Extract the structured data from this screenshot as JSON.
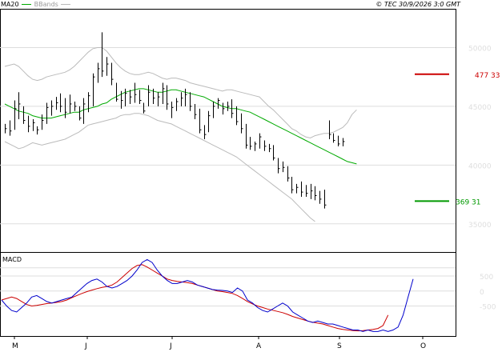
{
  "header": {
    "legend_ma": "MA20",
    "legend_bb": "BBands",
    "copyright": "© TEC 30/9/2026 3:0 GMT"
  },
  "colors": {
    "ma": "#00aa00",
    "bands": "#bbbbbb",
    "bars": "#000000",
    "macd": "#0000cc",
    "signal": "#cc0000",
    "resistance": "#cc0000",
    "support": "#009900",
    "grid": "#dddddd"
  },
  "chart_data": [
    {
      "type": "ohlc",
      "panel": "price",
      "ylim": [
        32600,
        53300
      ],
      "yticks": [
        35000,
        40000,
        45000,
        50000
      ],
      "x_labels": [
        "M",
        "J",
        "J",
        "A",
        "S",
        "O"
      ],
      "series": [
        {
          "name": "MA20",
          "values": [
            45200,
            45000,
            44800,
            44600,
            44500,
            44400,
            44200,
            44100,
            44000,
            44000,
            44000,
            44100,
            44200,
            44300,
            44400,
            44500,
            44500,
            44700,
            44800,
            44900,
            45000,
            45200,
            45300,
            45600,
            45800,
            46000,
            46200,
            46300,
            46400,
            46500,
            46500,
            46400,
            46300,
            46200,
            46200,
            46300,
            46400,
            46400,
            46300,
            46200,
            46100,
            46000,
            45900,
            45800,
            45600,
            45400,
            45200,
            45000,
            44900,
            44800,
            44800,
            44700,
            44600,
            44500,
            44300,
            44100,
            43900,
            43700,
            43500,
            43300,
            43100,
            42900,
            42700,
            42500,
            42300,
            42100,
            41900,
            41700,
            41500,
            41300,
            41100,
            40900,
            40700,
            40500,
            40300,
            40200,
            40100
          ]
        },
        {
          "name": "Upper band",
          "values": [
            48400,
            48500,
            48600,
            48400,
            48000,
            47600,
            47300,
            47200,
            47300,
            47500,
            47600,
            47700,
            47800,
            47900,
            48100,
            48400,
            48800,
            49200,
            49600,
            49900,
            50000,
            50000,
            49700,
            49200,
            48700,
            48300,
            48000,
            47800,
            47700,
            47700,
            47800,
            47900,
            47800,
            47600,
            47400,
            47300,
            47400,
            47400,
            47300,
            47200,
            47000,
            46900,
            46800,
            46700,
            46600,
            46500,
            46400,
            46300,
            46400,
            46400,
            46300,
            46200,
            46100,
            46000,
            45900,
            45800,
            45400,
            45000,
            44700,
            44300,
            43900,
            43500,
            43100,
            42900,
            42600,
            42400,
            42300,
            42500,
            42600,
            42700,
            42700,
            42800,
            43000,
            43200,
            43600,
            44300,
            44700
          ]
        },
        {
          "name": "Lower band",
          "values": [
            42000,
            41800,
            41600,
            41400,
            41500,
            41700,
            41900,
            41800,
            41700,
            41800,
            41900,
            42000,
            42100,
            42200,
            42400,
            42600,
            42800,
            43100,
            43400,
            43500,
            43600,
            43700,
            43800,
            43900,
            44000,
            44200,
            44300,
            44300,
            44400,
            44400,
            44300,
            44200,
            44000,
            43800,
            43700,
            43600,
            43500,
            43300,
            43100,
            42900,
            42700,
            42500,
            42300,
            42100,
            41900,
            41700,
            41500,
            41300,
            41100,
            40900,
            40700,
            40400,
            40100,
            39800,
            39500,
            39200,
            38900,
            38600,
            38300,
            38000,
            37700,
            37400,
            37100,
            36700,
            36300,
            35900,
            35500,
            35200
          ]
        },
        {
          "name": "Price",
          "values": [
            [
              43500,
              42700,
              43100
            ],
            [
              43800,
              42500,
              42900
            ],
            [
              45500,
              43000,
              44800
            ],
            [
              46200,
              43900,
              45200
            ],
            [
              45000,
              43500,
              43800
            ],
            [
              44200,
              42800,
              43300
            ],
            [
              43900,
              42900,
              43600
            ],
            [
              43300,
              42600,
              43000
            ],
            [
              44300,
              43000,
              43800
            ],
            [
              45300,
              43500,
              44900
            ],
            [
              45500,
              44200,
              45000
            ],
            [
              45800,
              44700,
              45300
            ],
            [
              46100,
              44500,
              45000
            ],
            [
              45700,
              44000,
              44500
            ],
            [
              46000,
              44400,
              45200
            ],
            [
              45400,
              44600,
              45000
            ],
            [
              45000,
              43800,
              44000
            ],
            [
              45700,
              43500,
              45200
            ],
            [
              46200,
              44500,
              45900
            ],
            [
              47800,
              45000,
              47500
            ],
            [
              48700,
              47000,
              48200
            ],
            [
              51300,
              47500,
              48000
            ],
            [
              49200,
              47600,
              48600
            ],
            [
              48700,
              46800,
              47300
            ],
            [
              47000,
              45400,
              45600
            ],
            [
              46300,
              44800,
              45500
            ],
            [
              46500,
              45000,
              46100
            ],
            [
              46400,
              45200,
              45800
            ],
            [
              47000,
              45300,
              46000
            ],
            [
              46400,
              45200,
              45500
            ],
            [
              45300,
              44400,
              44600
            ],
            [
              46800,
              45000,
              46200
            ],
            [
              46500,
              45200,
              45700
            ],
            [
              46200,
              45000,
              45800
            ],
            [
              47000,
              45200,
              46500
            ],
            [
              46800,
              44700,
              45200
            ],
            [
              45400,
              44000,
              44900
            ],
            [
              45700,
              44600,
              45400
            ],
            [
              46200,
              45000,
              45700
            ],
            [
              46500,
              45000,
              46000
            ],
            [
              46200,
              44600,
              45000
            ],
            [
              45200,
              43900,
              44300
            ],
            [
              44800,
              42700,
              43000
            ],
            [
              43400,
              42200,
              42600
            ],
            [
              44600,
              42800,
              44200
            ],
            [
              45400,
              44000,
              45000
            ],
            [
              45700,
              44800,
              45500
            ],
            [
              45300,
              44300,
              44800
            ],
            [
              45400,
              44600,
              45000
            ],
            [
              45600,
              44000,
              44400
            ],
            [
              45000,
              43400,
              43700
            ],
            [
              44400,
              42700,
              43100
            ],
            [
              43500,
              41400,
              41700
            ],
            [
              42400,
              41300,
              41600
            ],
            [
              42000,
              41200,
              41800
            ],
            [
              42700,
              41400,
              42400
            ],
            [
              42100,
              41200,
              41600
            ],
            [
              41800,
              41100,
              41400
            ],
            [
              41700,
              40400,
              40600
            ],
            [
              40600,
              39300,
              39700
            ],
            [
              40300,
              39400,
              39800
            ],
            [
              39900,
              38600,
              38900
            ],
            [
              39000,
              37600,
              37900
            ],
            [
              38400,
              37600,
              38100
            ],
            [
              38600,
              37300,
              37700
            ],
            [
              38300,
              37300,
              37600
            ],
            [
              38400,
              37100,
              37800
            ],
            [
              38200,
              37000,
              37400
            ],
            [
              37800,
              36700,
              37100
            ],
            [
              37900,
              36300,
              36600
            ],
            [
              43800,
              42200,
              42600
            ],
            [
              42700,
              41900,
              42100
            ],
            [
              42500,
              41600,
              41800
            ],
            [
              42300,
              41600,
              42000
            ]
          ]
        }
      ],
      "levels": [
        {
          "label": "477 33",
          "value": 47733,
          "color": "#cc0000"
        },
        {
          "label": "369 31",
          "value": 36931,
          "color": "#009900"
        }
      ]
    },
    {
      "type": "line",
      "title": "MACD",
      "panel": "macd",
      "ylim": [
        -1500,
        1300
      ],
      "yticks": [
        500,
        0,
        -500
      ],
      "ytick_labels": [
        "500",
        "0",
        "-500"
      ],
      "series": [
        {
          "name": "MACD",
          "color": "#0000cc",
          "values": [
            -300,
            -500,
            -650,
            -700,
            -550,
            -400,
            -200,
            -150,
            -250,
            -350,
            -400,
            -350,
            -300,
            -250,
            -200,
            -50,
            100,
            250,
            350,
            400,
            300,
            150,
            100,
            150,
            250,
            350,
            500,
            700,
            950,
            1050,
            950,
            700,
            500,
            350,
            250,
            250,
            300,
            350,
            300,
            200,
            150,
            100,
            50,
            30,
            20,
            0,
            -50,
            100,
            0,
            -300,
            -400,
            -550,
            -650,
            -700,
            -600,
            -500,
            -400,
            -500,
            -700,
            -800,
            -900,
            -1000,
            -1050,
            -1000,
            -1050,
            -1100,
            -1100,
            -1150,
            -1200,
            -1250,
            -1300,
            -1300,
            -1350,
            -1300,
            -1350,
            -1350,
            -1300,
            -1350,
            -1300,
            -1200,
            -800,
            -200,
            400
          ]
        },
        {
          "name": "Signal",
          "color": "#cc0000",
          "values": [
            -300,
            -250,
            -200,
            -250,
            -350,
            -450,
            -500,
            -480,
            -450,
            -420,
            -400,
            -380,
            -350,
            -300,
            -220,
            -150,
            -80,
            -20,
            30,
            80,
            120,
            150,
            200,
            300,
            450,
            600,
            750,
            850,
            880,
            800,
            700,
            600,
            500,
            400,
            350,
            320,
            300,
            280,
            250,
            200,
            150,
            100,
            50,
            0,
            -20,
            -50,
            -80,
            -150,
            -250,
            -350,
            -430,
            -500,
            -550,
            -600,
            -640,
            -680,
            -720,
            -780,
            -850,
            -900,
            -950,
            -1000,
            -1040,
            -1070,
            -1100,
            -1150,
            -1200,
            -1250,
            -1280,
            -1300,
            -1320,
            -1330,
            -1320,
            -1300,
            -1280,
            -1250,
            -1150,
            -800
          ]
        }
      ]
    }
  ]
}
